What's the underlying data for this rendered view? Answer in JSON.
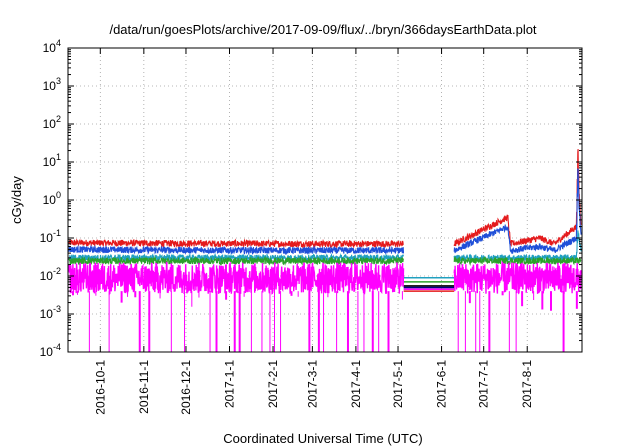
{
  "chart_data": {
    "type": "line",
    "title": "/data/run/goesPlots/archive/2017-09-09/flux/../bryn/366daysEarthData.plot",
    "xlabel": "Coordinated Universal Time (UTC)",
    "ylabel": "cGy/day",
    "yscale": "log",
    "ylim": [
      0.0001,
      10000
    ],
    "xlim": [
      "2016-09-08",
      "2017-09-09"
    ],
    "grid": true,
    "y_ticks": [
      {
        "base": "10",
        "exp": "-4",
        "value": 0.0001
      },
      {
        "base": "10",
        "exp": "-3",
        "value": 0.001
      },
      {
        "base": "10",
        "exp": "-2",
        "value": 0.01
      },
      {
        "base": "10",
        "exp": "-1",
        "value": 0.1
      },
      {
        "base": "10",
        "exp": "0",
        "value": 1
      },
      {
        "base": "10",
        "exp": "1",
        "value": 10
      },
      {
        "base": "10",
        "exp": "2",
        "value": 100
      },
      {
        "base": "10",
        "exp": "3",
        "value": 1000
      },
      {
        "base": "10",
        "exp": "4",
        "value": 10000
      }
    ],
    "x_ticks": [
      {
        "label": "2016-10-1",
        "date": "2016-10-01"
      },
      {
        "label": "2016-11-1",
        "date": "2016-11-01"
      },
      {
        "label": "2016-12-1",
        "date": "2016-12-01"
      },
      {
        "label": "2017-1-1",
        "date": "2017-01-01"
      },
      {
        "label": "2017-2-1",
        "date": "2017-02-01"
      },
      {
        "label": "2017-3-1",
        "date": "2017-03-01"
      },
      {
        "label": "2017-4-1",
        "date": "2017-04-01"
      },
      {
        "label": "2017-5-1",
        "date": "2017-05-01"
      },
      {
        "label": "2017-6-1",
        "date": "2017-06-01"
      },
      {
        "label": "2017-7-1",
        "date": "2017-07-01"
      },
      {
        "label": "2017-8-1",
        "date": "2017-08-01"
      }
    ],
    "data_gap": [
      "2017-05-05",
      "2017-06-10"
    ],
    "series": [
      {
        "color": "#e41a1c",
        "points": [
          [
            "2016-09-08",
            0.075
          ],
          [
            "2016-12-01",
            0.072
          ],
          [
            "2017-03-01",
            0.07
          ],
          [
            "2017-05-05",
            0.07
          ],
          [
            "2017-06-10",
            0.07
          ],
          [
            "2017-07-18",
            0.35
          ],
          [
            "2017-07-20",
            0.07
          ],
          [
            "2017-08-10",
            0.1
          ],
          [
            "2017-08-20",
            0.07
          ],
          [
            "2017-09-05",
            0.2
          ],
          [
            "2017-09-06",
            20
          ],
          [
            "2017-09-07",
            1
          ],
          [
            "2017-09-09",
            0.1
          ]
        ]
      },
      {
        "color": "#1f4fd8",
        "points": [
          [
            "2016-09-08",
            0.05
          ],
          [
            "2016-12-01",
            0.048
          ],
          [
            "2017-03-01",
            0.047
          ],
          [
            "2017-05-05",
            0.047
          ],
          [
            "2017-06-10",
            0.047
          ],
          [
            "2017-07-18",
            0.2
          ],
          [
            "2017-07-20",
            0.047
          ],
          [
            "2017-08-10",
            0.06
          ],
          [
            "2017-08-20",
            0.047
          ],
          [
            "2017-09-05",
            0.1
          ],
          [
            "2017-09-06",
            8
          ],
          [
            "2017-09-07",
            0.5
          ],
          [
            "2017-09-09",
            0.05
          ]
        ]
      },
      {
        "color": "#20a0c0",
        "points": [
          [
            "2016-09-08",
            0.03
          ],
          [
            "2017-05-05",
            0.03
          ],
          [
            "2017-06-10",
            0.03
          ],
          [
            "2017-09-05",
            0.03
          ],
          [
            "2017-09-06",
            0.15
          ],
          [
            "2017-09-09",
            0.03
          ]
        ]
      },
      {
        "color": "#2ca02c",
        "points": [
          [
            "2016-09-08",
            0.025
          ],
          [
            "2017-05-05",
            0.025
          ],
          [
            "2017-06-10",
            0.025
          ],
          [
            "2017-09-09",
            0.025
          ]
        ]
      },
      {
        "color": "#ff00ff",
        "points": [
          [
            "2016-09-08",
            0.012
          ],
          [
            "2017-05-05",
            0.012
          ],
          [
            "2017-06-10",
            0.012
          ],
          [
            "2017-09-09",
            0.012
          ]
        ]
      }
    ],
    "gap_lines": [
      {
        "color": "#e41a1c",
        "value": 0.004
      },
      {
        "color": "#ff00ff",
        "value": 0.0045
      },
      {
        "color": "#000080",
        "value": 0.005
      },
      {
        "color": "#000000",
        "value": 0.0055
      },
      {
        "color": "#2ca02c",
        "value": 0.007
      },
      {
        "color": "#20a0c0",
        "value": 0.009
      }
    ]
  }
}
